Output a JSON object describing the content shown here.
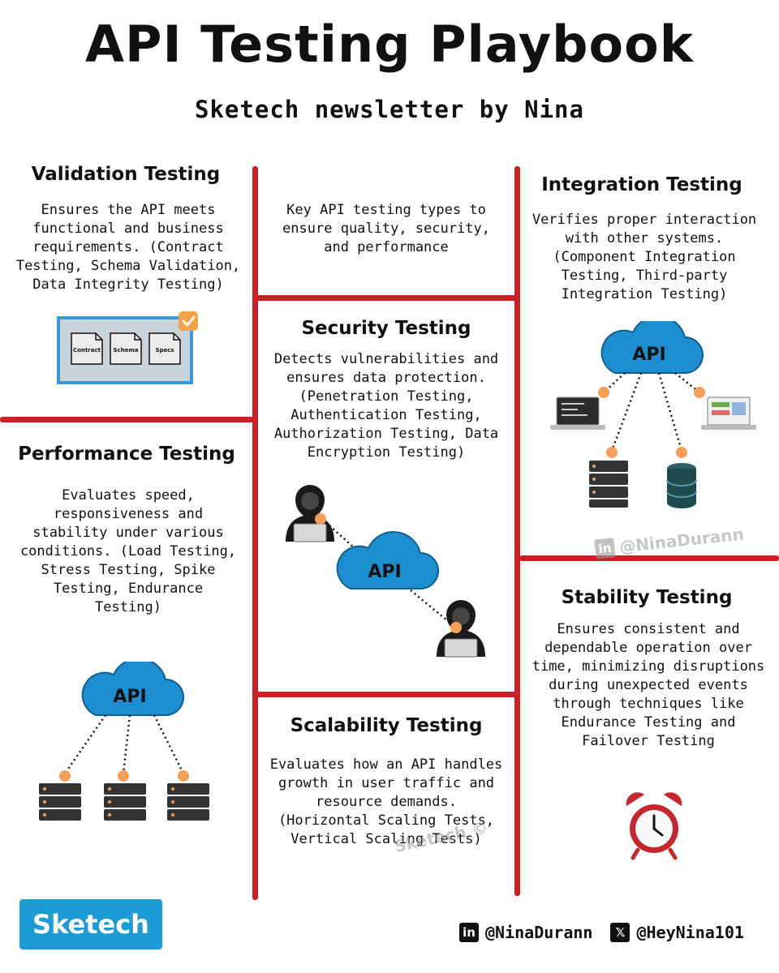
{
  "header": {
    "title": "API Testing Playbook",
    "subtitle": "Sketech newsletter by Nina"
  },
  "intro": "Key API testing types to\nensure quality, security,\nand performance",
  "sections": {
    "validation": {
      "title": "Validation Testing",
      "body": "Ensures the API meets\nfunctional and business\nrequirements. (Contract\nTesting, Schema Validation,\nData Integrity Testing)",
      "docs": [
        "Contract",
        "Schema",
        "Specs"
      ]
    },
    "integration": {
      "title": "Integration Testing",
      "body": "Verifies proper interaction\nwith other systems.\n(Component Integration\nTesting, Third-party\nIntegration Testing)"
    },
    "security": {
      "title": "Security Testing",
      "body": "Detects vulnerabilities and\nensures data protection.\n(Penetration Testing,\nAuthentication Testing,\nAuthorization Testing, Data\nEncryption Testing)"
    },
    "performance": {
      "title": "Performance Testing",
      "body": "Evaluates speed,\nresponsiveness and\nstability under various\nconditions. (Load Testing,\nStress Testing, Spike\nTesting, Endurance\nTesting)"
    },
    "stability": {
      "title": "Stability Testing",
      "body": "Ensures consistent and\ndependable operation over\ntime, minimizing disruptions\nduring unexpected events\nthrough techniques like\nEndurance Testing and\nFailover Testing"
    },
    "scalability": {
      "title": "Scalability Testing",
      "body": "Evaluates how an API handles\ngrowth in user traffic and\nresource demands.\n(Horizontal Scaling Tests,\nVertical Scaling Tests)"
    }
  },
  "cloud_label": "API",
  "watermarks": {
    "linkedin": "@NinaDurann",
    "sketech": "Sketech ©"
  },
  "footer": {
    "brand": "Sketech",
    "linkedin_icon": "in",
    "linkedin_handle": "@NinaDurann",
    "x_icon": "𝕏",
    "x_handle": "@HeyNina101"
  },
  "colors": {
    "divider": "#cc1f26",
    "cloud": "#1d8fd0",
    "accent_dot": "#f5a05a",
    "brand": "#1d9bd7"
  }
}
